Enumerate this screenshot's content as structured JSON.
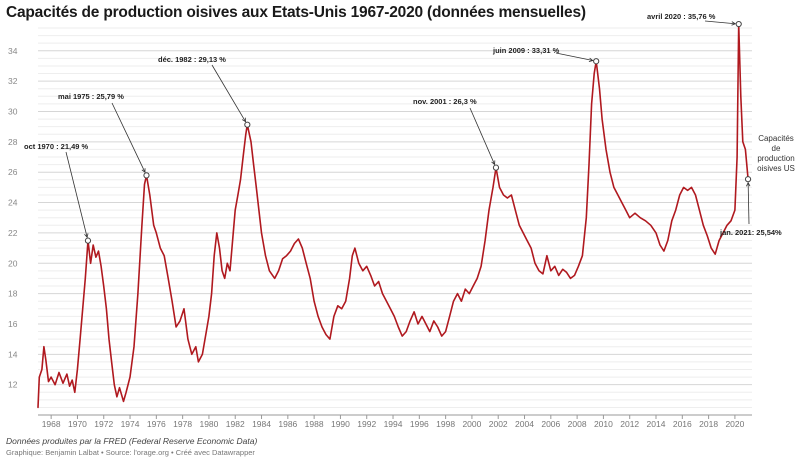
{
  "chart_data": {
    "type": "line",
    "title": "Capacités de production oisives aux Etats-Unis 1967-2020 (données mensuelles)",
    "xlabel": "",
    "ylabel": "",
    "xlim": [
      1967,
      2021.3
    ],
    "ylim": [
      10.2,
      35.5
    ],
    "grid": true,
    "x_ticks": [
      1968,
      1970,
      1972,
      1974,
      1976,
      1978,
      1980,
      1982,
      1984,
      1986,
      1988,
      1990,
      1992,
      1994,
      1996,
      1998,
      2000,
      2002,
      2004,
      2006,
      2008,
      2010,
      2012,
      2014,
      2016,
      2018,
      2020
    ],
    "y_ticks": [
      12,
      14,
      16,
      18,
      20,
      22,
      24,
      26,
      28,
      30,
      32,
      34
    ],
    "series": [
      {
        "name": "Capacités de production oisives US",
        "color": "#b0191f",
        "points": [
          [
            1967.0,
            10.5
          ],
          [
            1967.1,
            12.5
          ],
          [
            1967.3,
            13.0
          ],
          [
            1967.45,
            14.5
          ],
          [
            1967.6,
            13.6
          ],
          [
            1967.8,
            12.2
          ],
          [
            1968.0,
            12.5
          ],
          [
            1968.3,
            12.0
          ],
          [
            1968.6,
            12.8
          ],
          [
            1968.9,
            12.1
          ],
          [
            1969.2,
            12.7
          ],
          [
            1969.4,
            11.9
          ],
          [
            1969.6,
            12.3
          ],
          [
            1969.8,
            11.5
          ],
          [
            1970.0,
            13.0
          ],
          [
            1970.2,
            15.0
          ],
          [
            1970.4,
            17.0
          ],
          [
            1970.6,
            19.0
          ],
          [
            1970.8,
            21.49
          ],
          [
            1971.0,
            20.0
          ],
          [
            1971.2,
            21.2
          ],
          [
            1971.4,
            20.4
          ],
          [
            1971.6,
            20.8
          ],
          [
            1971.8,
            19.8
          ],
          [
            1972.0,
            18.5
          ],
          [
            1972.2,
            17.0
          ],
          [
            1972.4,
            15.0
          ],
          [
            1972.6,
            13.5
          ],
          [
            1972.8,
            12.0
          ],
          [
            1973.0,
            11.2
          ],
          [
            1973.2,
            11.8
          ],
          [
            1973.5,
            10.9
          ],
          [
            1973.7,
            11.5
          ],
          [
            1974.0,
            12.5
          ],
          [
            1974.3,
            14.5
          ],
          [
            1974.6,
            18.0
          ],
          [
            1974.9,
            22.5
          ],
          [
            1975.1,
            25.2
          ],
          [
            1975.25,
            25.79
          ],
          [
            1975.5,
            24.5
          ],
          [
            1975.8,
            22.5
          ],
          [
            1976.0,
            22.0
          ],
          [
            1976.3,
            21.0
          ],
          [
            1976.6,
            20.5
          ],
          [
            1976.9,
            19.0
          ],
          [
            1977.2,
            17.5
          ],
          [
            1977.5,
            15.8
          ],
          [
            1977.8,
            16.2
          ],
          [
            1978.1,
            17.0
          ],
          [
            1978.4,
            15.0
          ],
          [
            1978.7,
            14.0
          ],
          [
            1979.0,
            14.5
          ],
          [
            1979.2,
            13.5
          ],
          [
            1979.5,
            14.0
          ],
          [
            1979.8,
            15.5
          ],
          [
            1980.0,
            16.5
          ],
          [
            1980.2,
            18.0
          ],
          [
            1980.4,
            20.5
          ],
          [
            1980.6,
            22.0
          ],
          [
            1980.8,
            21.0
          ],
          [
            1981.0,
            19.5
          ],
          [
            1981.2,
            19.0
          ],
          [
            1981.4,
            20.0
          ],
          [
            1981.6,
            19.5
          ],
          [
            1981.8,
            21.5
          ],
          [
            1982.0,
            23.5
          ],
          [
            1982.2,
            24.5
          ],
          [
            1982.4,
            25.5
          ],
          [
            1982.6,
            27.0
          ],
          [
            1982.8,
            28.5
          ],
          [
            1982.92,
            29.13
          ],
          [
            1983.2,
            28.0
          ],
          [
            1983.4,
            26.5
          ],
          [
            1983.6,
            25.0
          ],
          [
            1983.8,
            23.5
          ],
          [
            1984.0,
            22.0
          ],
          [
            1984.3,
            20.5
          ],
          [
            1984.6,
            19.5
          ],
          [
            1985.0,
            19.0
          ],
          [
            1985.3,
            19.5
          ],
          [
            1985.6,
            20.3
          ],
          [
            1985.9,
            20.5
          ],
          [
            1986.2,
            20.8
          ],
          [
            1986.5,
            21.3
          ],
          [
            1986.8,
            21.6
          ],
          [
            1987.1,
            21.0
          ],
          [
            1987.4,
            20.0
          ],
          [
            1987.7,
            19.0
          ],
          [
            1988.0,
            17.5
          ],
          [
            1988.3,
            16.5
          ],
          [
            1988.6,
            15.8
          ],
          [
            1988.9,
            15.3
          ],
          [
            1989.2,
            15.0
          ],
          [
            1989.5,
            16.5
          ],
          [
            1989.8,
            17.2
          ],
          [
            1990.1,
            17.0
          ],
          [
            1990.4,
            17.5
          ],
          [
            1990.7,
            19.0
          ],
          [
            1990.9,
            20.5
          ],
          [
            1991.1,
            21.0
          ],
          [
            1991.4,
            20.0
          ],
          [
            1991.7,
            19.5
          ],
          [
            1992.0,
            19.8
          ],
          [
            1992.3,
            19.2
          ],
          [
            1992.6,
            18.5
          ],
          [
            1992.9,
            18.8
          ],
          [
            1993.2,
            18.0
          ],
          [
            1993.5,
            17.5
          ],
          [
            1993.8,
            17.0
          ],
          [
            1994.1,
            16.5
          ],
          [
            1994.4,
            15.8
          ],
          [
            1994.7,
            15.2
          ],
          [
            1995.0,
            15.5
          ],
          [
            1995.3,
            16.2
          ],
          [
            1995.6,
            16.8
          ],
          [
            1995.9,
            16.0
          ],
          [
            1996.2,
            16.5
          ],
          [
            1996.5,
            16.0
          ],
          [
            1996.8,
            15.5
          ],
          [
            1997.1,
            16.2
          ],
          [
            1997.4,
            15.8
          ],
          [
            1997.7,
            15.2
          ],
          [
            1998.0,
            15.5
          ],
          [
            1998.3,
            16.5
          ],
          [
            1998.6,
            17.5
          ],
          [
            1998.9,
            18.0
          ],
          [
            1999.2,
            17.5
          ],
          [
            1999.5,
            18.3
          ],
          [
            1999.8,
            18.0
          ],
          [
            2000.1,
            18.5
          ],
          [
            2000.4,
            19.0
          ],
          [
            2000.7,
            19.8
          ],
          [
            2001.0,
            21.5
          ],
          [
            2001.3,
            23.5
          ],
          [
            2001.6,
            25.0
          ],
          [
            2001.83,
            26.3
          ],
          [
            2002.1,
            25.0
          ],
          [
            2002.4,
            24.5
          ],
          [
            2002.7,
            24.3
          ],
          [
            2003.0,
            24.5
          ],
          [
            2003.3,
            23.5
          ],
          [
            2003.6,
            22.5
          ],
          [
            2003.9,
            22.0
          ],
          [
            2004.2,
            21.5
          ],
          [
            2004.5,
            21.0
          ],
          [
            2004.8,
            20.0
          ],
          [
            2005.1,
            19.5
          ],
          [
            2005.4,
            19.3
          ],
          [
            2005.7,
            20.5
          ],
          [
            2006.0,
            19.5
          ],
          [
            2006.3,
            19.8
          ],
          [
            2006.6,
            19.2
          ],
          [
            2006.9,
            19.6
          ],
          [
            2007.2,
            19.4
          ],
          [
            2007.5,
            19.0
          ],
          [
            2007.8,
            19.2
          ],
          [
            2008.1,
            19.8
          ],
          [
            2008.4,
            20.5
          ],
          [
            2008.7,
            23.0
          ],
          [
            2008.9,
            26.5
          ],
          [
            2009.1,
            30.5
          ],
          [
            2009.3,
            32.5
          ],
          [
            2009.45,
            33.31
          ],
          [
            2009.7,
            31.5
          ],
          [
            2009.9,
            29.5
          ],
          [
            2010.2,
            27.5
          ],
          [
            2010.5,
            26.0
          ],
          [
            2010.8,
            25.0
          ],
          [
            2011.1,
            24.5
          ],
          [
            2011.4,
            24.0
          ],
          [
            2011.7,
            23.5
          ],
          [
            2012.0,
            23.0
          ],
          [
            2012.4,
            23.3
          ],
          [
            2012.8,
            23.0
          ],
          [
            2013.2,
            22.8
          ],
          [
            2013.6,
            22.5
          ],
          [
            2014.0,
            22.0
          ],
          [
            2014.3,
            21.2
          ],
          [
            2014.6,
            20.8
          ],
          [
            2014.9,
            21.5
          ],
          [
            2015.2,
            22.8
          ],
          [
            2015.5,
            23.5
          ],
          [
            2015.8,
            24.5
          ],
          [
            2016.1,
            25.0
          ],
          [
            2016.4,
            24.8
          ],
          [
            2016.7,
            25.0
          ],
          [
            2017.0,
            24.5
          ],
          [
            2017.3,
            23.5
          ],
          [
            2017.6,
            22.5
          ],
          [
            2017.9,
            21.8
          ],
          [
            2018.2,
            21.0
          ],
          [
            2018.5,
            20.6
          ],
          [
            2018.8,
            21.5
          ],
          [
            2019.1,
            22.0
          ],
          [
            2019.4,
            22.5
          ],
          [
            2019.7,
            22.8
          ],
          [
            2020.0,
            23.5
          ],
          [
            2020.17,
            27.0
          ],
          [
            2020.29,
            35.76
          ],
          [
            2020.45,
            31.0
          ],
          [
            2020.6,
            28.0
          ],
          [
            2020.8,
            27.5
          ],
          [
            2021.0,
            25.54
          ]
        ]
      }
    ],
    "annotations": [
      {
        "text": "oct 1970 : 21,49 %",
        "x": 1970.8,
        "y": 21.49
      },
      {
        "text": "mai 1975 : 25,79 %",
        "x": 1975.25,
        "y": 25.79
      },
      {
        "text": "déc. 1982 : 29,13 %",
        "x": 1982.92,
        "y": 29.13
      },
      {
        "text": "nov. 2001 : 26,3 %",
        "x": 2001.83,
        "y": 26.3
      },
      {
        "text": "juin 2009 : 33,31 %",
        "x": 2009.45,
        "y": 33.31
      },
      {
        "text": "avril 2020 : 35,76 %",
        "x": 2020.29,
        "y": 35.76
      },
      {
        "text": "jan. 2021: 25,54%",
        "x": 2021.0,
        "y": 25.54
      }
    ]
  },
  "series_label": "Capacités de production oisives US",
  "footer": {
    "source_line": "Données produites par la FRED (Federal Reserve Economic Data)",
    "credit_line": "Graphique: Benjamin Lalbat • Source: l'orage.org • Créé avec Datawrapper"
  }
}
